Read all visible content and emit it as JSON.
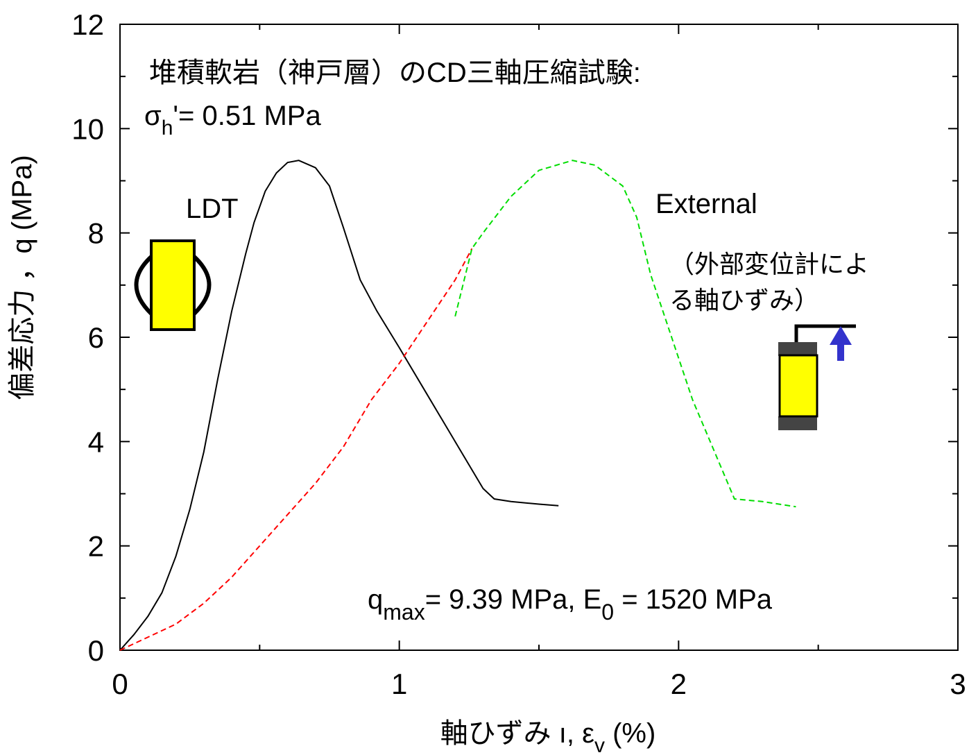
{
  "chart_data": {
    "type": "line",
    "xlabel": [
      "軸ひずみ ı, ε",
      "v",
      " (%)"
    ],
    "ylabel": "偏差応力 ，q (MPa)",
    "xlim": [
      0,
      3
    ],
    "xticks": [
      0,
      1,
      2,
      3
    ],
    "xminorticks": [
      0.5,
      1.5,
      2.5
    ],
    "ylim": [
      0,
      12
    ],
    "yticks": [
      0,
      2,
      4,
      6,
      8,
      10,
      12
    ],
    "yminorticks": [
      1,
      3,
      5,
      7,
      9,
      11
    ],
    "annotations": {
      "title": "堆積軟岩（神戸層）のCD三軸圧縮試験:",
      "sigma": [
        "σ",
        "h",
        "'= 0.51 MPa"
      ],
      "external_note": [
        "（外部変位計によ",
        "る軸ひずみ）"
      ],
      "result": [
        "q",
        "max",
        "= 9.39 MPa,  E",
        "0",
        " = 1520 MPa"
      ]
    },
    "series": [
      {
        "name": "LDT",
        "color": "#000000",
        "dash": false,
        "x": [
          0,
          0.05,
          0.1,
          0.15,
          0.2,
          0.25,
          0.3,
          0.35,
          0.4,
          0.45,
          0.48,
          0.52,
          0.56,
          0.6,
          0.64,
          0.7,
          0.75,
          0.8,
          0.86,
          0.92,
          1.0,
          1.1,
          1.2,
          1.3,
          1.34,
          1.4,
          1.5,
          1.57
        ],
        "values": [
          0,
          0.3,
          0.65,
          1.1,
          1.8,
          2.7,
          3.8,
          5.2,
          6.5,
          7.6,
          8.2,
          8.8,
          9.15,
          9.35,
          9.39,
          9.25,
          8.9,
          8.1,
          7.1,
          6.5,
          5.8,
          4.9,
          4.0,
          3.1,
          2.9,
          2.85,
          2.8,
          2.77
        ]
      },
      {
        "color": "#ff0000",
        "dash": true,
        "x": [
          0,
          0.2,
          0.3,
          0.4,
          0.5,
          0.6,
          0.7,
          0.8,
          0.9,
          1.0,
          1.1,
          1.2,
          1.26
        ],
        "values": [
          0,
          0.5,
          0.9,
          1.4,
          2.0,
          2.6,
          3.2,
          3.9,
          4.8,
          5.5,
          6.3,
          7.1,
          7.7
        ]
      },
      {
        "name": "External",
        "color": "#00dd00",
        "dash": true,
        "x": [
          1.2,
          1.26,
          1.3,
          1.4,
          1.5,
          1.62,
          1.7,
          1.8,
          1.85,
          1.9,
          1.95,
          2.05,
          2.2,
          2.3,
          2.42
        ],
        "values": [
          6.4,
          7.7,
          8.0,
          8.7,
          9.2,
          9.39,
          9.3,
          8.9,
          8.3,
          7.2,
          6.4,
          4.8,
          2.9,
          2.85,
          2.75
        ]
      }
    ]
  }
}
